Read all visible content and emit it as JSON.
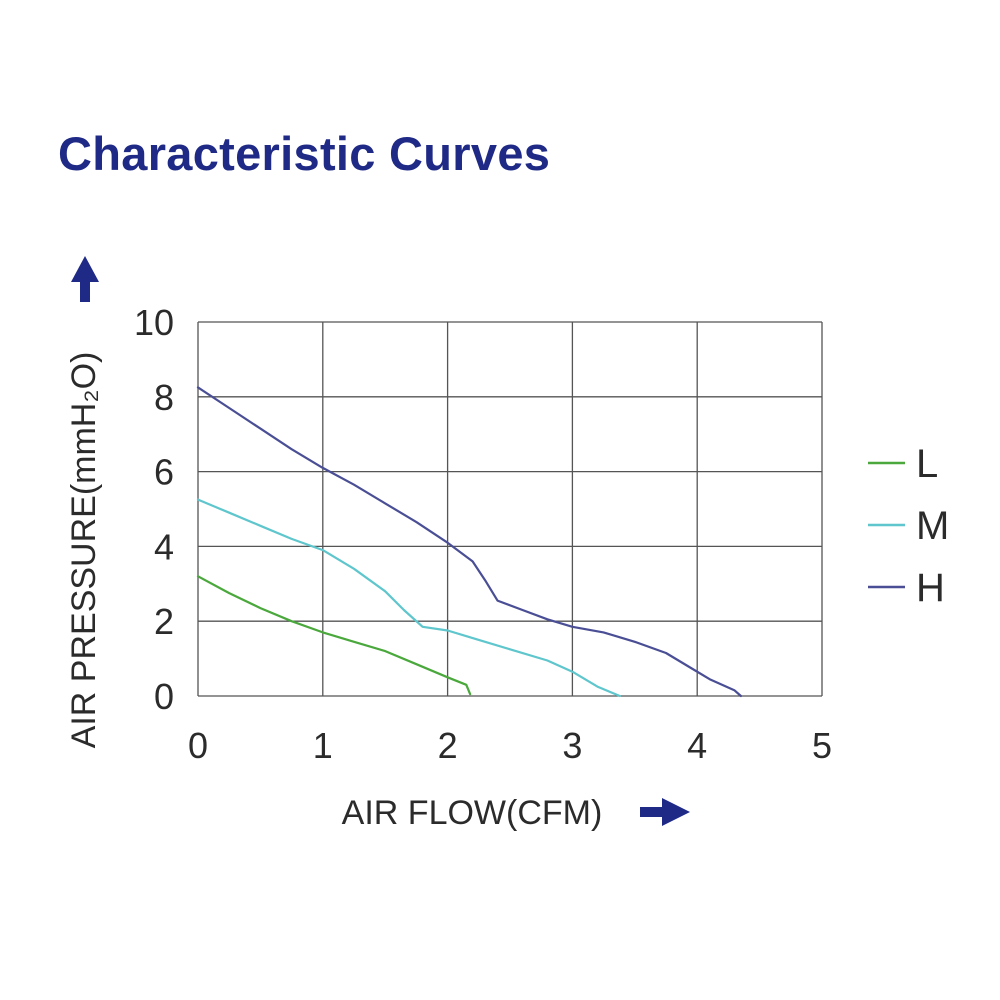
{
  "page": {
    "title": "Characteristic Curves"
  },
  "chart_data": {
    "type": "line",
    "title": "Characteristic Curves",
    "xlabel": "AIR FLOW(CFM)",
    "ylabel": "AIR PRESSURE(mmH₂O)",
    "xlim": [
      0,
      5
    ],
    "ylim": [
      0,
      10
    ],
    "x_ticks": [
      0,
      1,
      2,
      3,
      4,
      5
    ],
    "y_ticks": [
      0,
      2,
      4,
      6,
      8,
      10
    ],
    "x_tick_labels": [
      "0",
      "1",
      "2",
      "3",
      "4",
      "5"
    ],
    "y_tick_labels": [
      "0",
      "2",
      "4",
      "6",
      "8",
      "10"
    ],
    "grid": true,
    "legend_position": "right",
    "arrow_color": "#1f2a86",
    "series": [
      {
        "name": "L",
        "color": "#4aa83c",
        "points": [
          [
            0,
            3.2
          ],
          [
            0.25,
            2.75
          ],
          [
            0.5,
            2.35
          ],
          [
            0.75,
            2.0
          ],
          [
            1.0,
            1.7
          ],
          [
            1.25,
            1.45
          ],
          [
            1.5,
            1.2
          ],
          [
            1.75,
            0.85
          ],
          [
            2.0,
            0.5
          ],
          [
            2.15,
            0.3
          ],
          [
            2.18,
            0.05
          ]
        ]
      },
      {
        "name": "M",
        "color": "#5ec6cc",
        "points": [
          [
            0,
            5.25
          ],
          [
            0.25,
            4.9
          ],
          [
            0.5,
            4.55
          ],
          [
            0.75,
            4.2
          ],
          [
            1.0,
            3.9
          ],
          [
            1.25,
            3.4
          ],
          [
            1.5,
            2.8
          ],
          [
            1.65,
            2.3
          ],
          [
            1.8,
            1.85
          ],
          [
            2.0,
            1.75
          ],
          [
            2.25,
            1.5
          ],
          [
            2.5,
            1.25
          ],
          [
            2.8,
            0.95
          ],
          [
            3.0,
            0.65
          ],
          [
            3.2,
            0.25
          ],
          [
            3.38,
            0.0
          ]
        ]
      },
      {
        "name": "H",
        "color": "#4a4f95",
        "points": [
          [
            0,
            8.25
          ],
          [
            0.25,
            7.7
          ],
          [
            0.5,
            7.15
          ],
          [
            0.75,
            6.6
          ],
          [
            1.0,
            6.1
          ],
          [
            1.25,
            5.65
          ],
          [
            1.5,
            5.15
          ],
          [
            1.75,
            4.65
          ],
          [
            2.0,
            4.1
          ],
          [
            2.2,
            3.6
          ],
          [
            2.3,
            3.1
          ],
          [
            2.4,
            2.55
          ],
          [
            2.6,
            2.3
          ],
          [
            2.8,
            2.05
          ],
          [
            3.0,
            1.85
          ],
          [
            3.25,
            1.7
          ],
          [
            3.5,
            1.45
          ],
          [
            3.75,
            1.15
          ],
          [
            3.95,
            0.75
          ],
          [
            4.1,
            0.45
          ],
          [
            4.3,
            0.15
          ],
          [
            4.35,
            0.0
          ]
        ]
      }
    ]
  }
}
